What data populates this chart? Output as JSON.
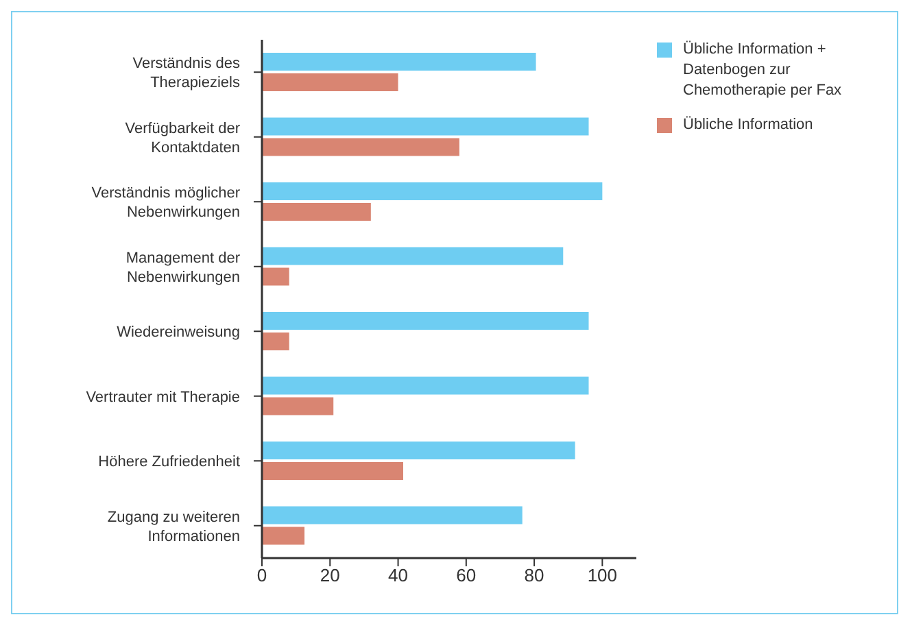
{
  "chart_data": {
    "type": "bar",
    "orientation": "horizontal",
    "categories": [
      "Verständnis des Therapieziels",
      "Verfügbarkeit der Kontaktdaten",
      "Verständnis möglicher Nebenwirkungen",
      "Management der Nebenwirkungen",
      "Wiedereinweisung",
      "Vertrauter mit Therapie",
      "Höhere Zufriedenheit",
      "Zugang zu weiteren Informationen"
    ],
    "series": [
      {
        "name": "Übliche Information + Datenbogen zur Chemotherapie per Fax",
        "color": "#6ecdf2",
        "values": [
          80.5,
          96,
          100,
          88.5,
          96,
          96,
          92,
          76.5
        ]
      },
      {
        "name": "Übliche Information",
        "color": "#d98572",
        "values": [
          40,
          58,
          32,
          8,
          8,
          21,
          41.5,
          12.5
        ]
      }
    ],
    "xlim": [
      0,
      110
    ],
    "xticks": [
      0,
      20,
      40,
      60,
      80,
      100
    ],
    "legend": "top right"
  }
}
